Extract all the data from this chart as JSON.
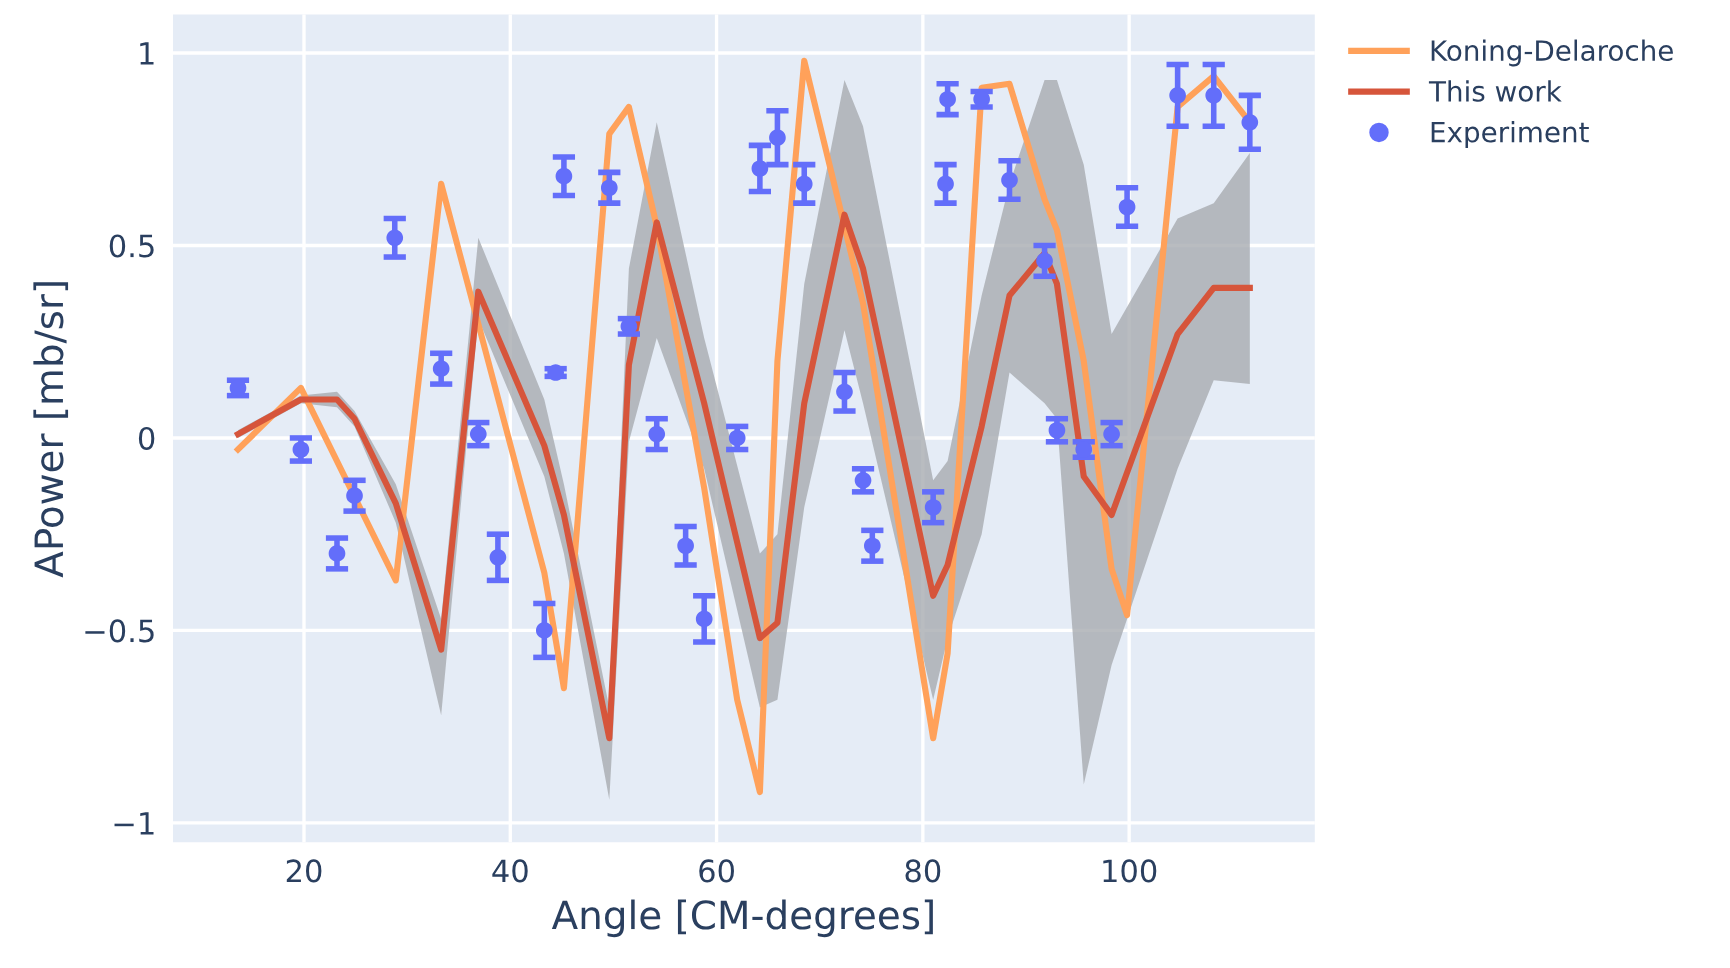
{
  "chart_data": {
    "type": "line",
    "xlabel": "Angle [CM-degrees]",
    "ylabel": "APower [mb/sr]",
    "xlim": [
      7.3,
      118
    ],
    "xticks": [
      20,
      40,
      60,
      80,
      100
    ],
    "ylim": [
      -1.05,
      1.1
    ],
    "yticks": [
      {
        "value": -1,
        "label": "−1"
      },
      {
        "value": -0.5,
        "label": "−0.5"
      },
      0,
      0.5,
      1
    ],
    "grid": true,
    "legend": "top right",
    "series": [
      {
        "name": "Koning-Delaroche",
        "color": "#ffa15a",
        "marker": "none",
        "x": [
          13.6,
          19.7,
          28.9,
          33.3,
          43.3,
          45.2,
          49.6,
          51.5,
          54.2,
          58.8,
          62.0,
          64.2,
          65.9,
          68.5,
          72.4,
          74.2,
          81.0,
          82.4,
          85.7,
          88.4,
          91.8,
          93.0,
          95.6,
          98.3,
          99.8,
          104.7,
          108.2,
          111.7
        ],
        "values": [
          -0.03,
          0.13,
          -0.37,
          0.66,
          -0.35,
          -0.65,
          0.79,
          0.86,
          0.55,
          -0.13,
          -0.68,
          -0.92,
          0.2,
          0.98,
          0.55,
          0.35,
          -0.78,
          -0.56,
          0.91,
          0.92,
          0.62,
          0.54,
          0.2,
          -0.34,
          -0.46,
          0.86,
          0.94,
          0.82
        ]
      },
      {
        "name": "This work",
        "color": "#d6553b",
        "marker": "none",
        "x": [
          13.6,
          19.7,
          23.2,
          24.9,
          28.9,
          33.3,
          36.9,
          43.3,
          45.2,
          49.6,
          51.5,
          54.2,
          58.8,
          64.2,
          65.9,
          68.5,
          72.4,
          74.2,
          81.0,
          82.4,
          85.7,
          88.4,
          91.8,
          93.0,
          95.6,
          98.3,
          104.7,
          108.2,
          111.7
        ],
        "values": [
          0.01,
          0.1,
          0.1,
          0.05,
          -0.17,
          -0.55,
          0.38,
          -0.02,
          -0.2,
          -0.78,
          0.19,
          0.56,
          0.09,
          -0.52,
          -0.48,
          0.09,
          0.58,
          0.44,
          -0.41,
          -0.33,
          0.03,
          0.37,
          0.48,
          0.4,
          -0.1,
          -0.2,
          0.27,
          0.39,
          0.39
        ],
        "lower": [
          0.0,
          0.09,
          0.08,
          0.03,
          -0.22,
          -0.72,
          0.31,
          -0.1,
          -0.3,
          -0.94,
          -0.01,
          0.26,
          -0.08,
          -0.7,
          -0.68,
          -0.18,
          0.28,
          0.09,
          -0.68,
          -0.52,
          -0.25,
          0.17,
          0.09,
          0.05,
          -0.9,
          -0.59,
          -0.08,
          0.15,
          0.14
        ],
        "upper": [
          0.02,
          0.11,
          0.12,
          0.07,
          -0.12,
          -0.47,
          0.52,
          0.1,
          -0.12,
          -0.7,
          0.44,
          0.82,
          0.26,
          -0.3,
          -0.25,
          0.4,
          0.93,
          0.81,
          -0.11,
          -0.06,
          0.37,
          0.66,
          0.93,
          0.93,
          0.71,
          0.27,
          0.57,
          0.61,
          0.74
        ]
      },
      {
        "name": "Experiment",
        "type": "scatter",
        "color": "#636efa",
        "marker": "circle",
        "x": [
          13.6,
          19.7,
          23.2,
          24.9,
          28.8,
          33.3,
          36.9,
          38.8,
          43.3,
          44.4,
          45.2,
          49.6,
          51.5,
          54.2,
          57.0,
          58.8,
          62.0,
          64.2,
          65.9,
          68.5,
          72.4,
          74.2,
          75.1,
          81.0,
          82.2,
          82.4,
          85.7,
          88.4,
          91.8,
          93.0,
          95.6,
          98.3,
          99.8,
          104.7,
          108.2,
          111.7
        ],
        "values": [
          0.13,
          -0.03,
          -0.3,
          -0.15,
          0.52,
          0.18,
          0.01,
          -0.31,
          -0.5,
          0.17,
          0.68,
          0.65,
          0.29,
          0.01,
          -0.28,
          -0.47,
          0.0,
          0.7,
          0.78,
          0.66,
          0.12,
          -0.11,
          -0.28,
          -0.18,
          0.66,
          0.88,
          0.88,
          0.67,
          0.46,
          0.02,
          -0.03,
          0.01,
          0.6,
          0.89,
          0.89,
          0.82
        ],
        "errors": [
          0.02,
          0.03,
          0.04,
          0.04,
          0.05,
          0.04,
          0.03,
          0.06,
          0.07,
          0.01,
          0.05,
          0.04,
          0.02,
          0.04,
          0.05,
          0.06,
          0.03,
          0.06,
          0.07,
          0.05,
          0.05,
          0.03,
          0.04,
          0.04,
          0.05,
          0.04,
          0.02,
          0.05,
          0.04,
          0.03,
          0.02,
          0.03,
          0.05,
          0.08,
          0.08,
          0.07
        ]
      }
    ]
  }
}
